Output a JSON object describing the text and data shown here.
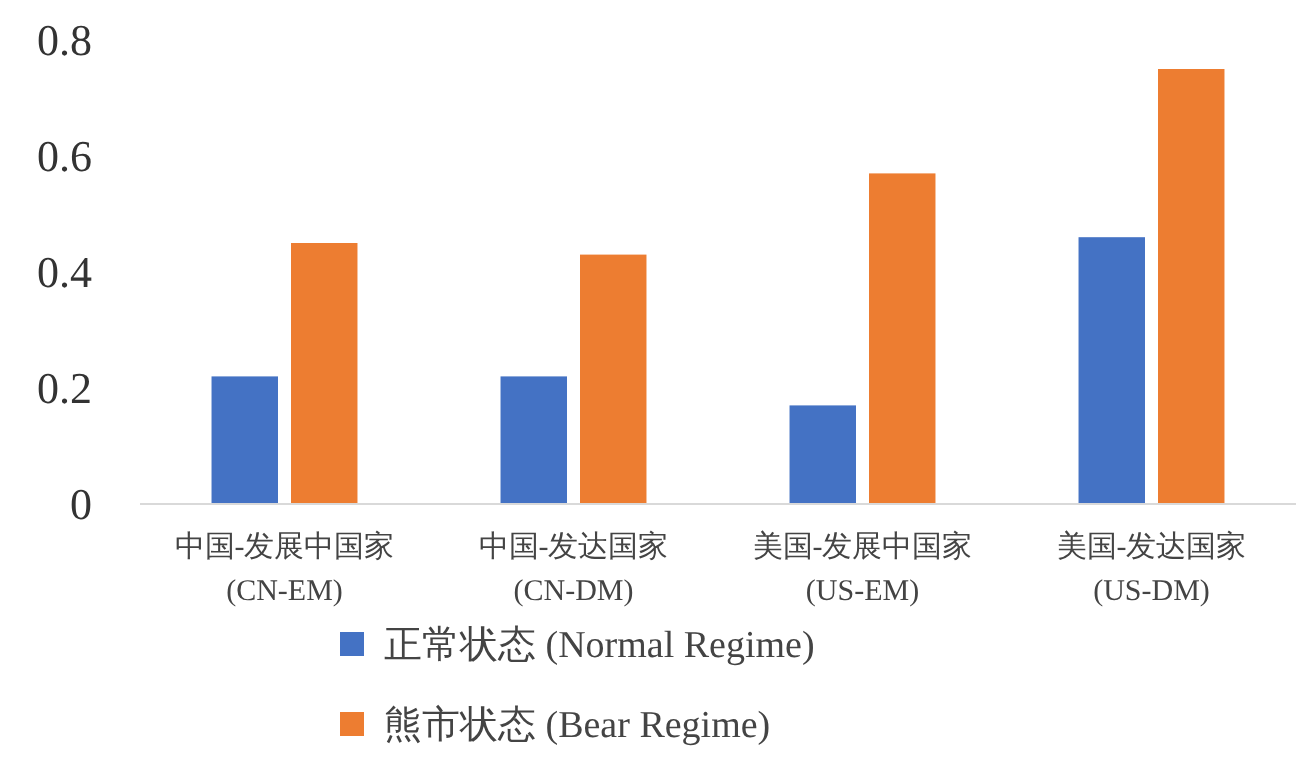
{
  "chart_data": {
    "type": "bar",
    "categories": [
      "中国-发展中国家\n(CN-EM)",
      "中国-发达国家\n(CN-DM)",
      "美国-发展中国家\n(US-EM)",
      "美国-发达国家\n(US-DM)"
    ],
    "series": [
      {
        "name": "正常状态 (Normal Regime)",
        "color": "#4472c4",
        "values": [
          0.22,
          0.22,
          0.17,
          0.46
        ]
      },
      {
        "name": "熊市状态 (Bear Regime)",
        "color": "#ed7d31",
        "values": [
          0.45,
          0.43,
          0.57,
          0.75
        ]
      }
    ],
    "ylim": [
      0,
      0.8
    ],
    "yticks": [
      0,
      0.2,
      0.4,
      0.6,
      0.8
    ],
    "grid": false,
    "legend": "bottom"
  }
}
